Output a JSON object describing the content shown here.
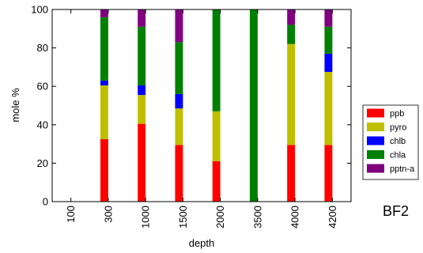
{
  "chart_data": {
    "type": "bar",
    "stacked": true,
    "title": "",
    "xlabel": "depth",
    "ylabel": "mole %",
    "ylim": [
      0,
      100
    ],
    "yticks": [
      0,
      20,
      40,
      60,
      80,
      100
    ],
    "x_tick_labels": [
      "100",
      "300",
      "1000",
      "1500",
      "2000",
      "3500",
      "4000",
      "4200"
    ],
    "categories": [
      "300",
      "1000",
      "1500",
      "2000",
      "3500",
      "4000",
      "4200"
    ],
    "series": [
      {
        "name": "ppb",
        "color": "#ff0000",
        "values": [
          32.5,
          40.5,
          29.5,
          21,
          0,
          29.5,
          29.5
        ]
      },
      {
        "name": "pyro",
        "color": "#bfbf00",
        "values": [
          28,
          15,
          19,
          26,
          0,
          52.5,
          38
        ]
      },
      {
        "name": "chlb",
        "color": "#0000ff",
        "values": [
          2.5,
          5,
          7.5,
          0,
          0,
          0,
          9.5
        ]
      },
      {
        "name": "chla",
        "color": "#008000",
        "values": [
          33,
          30.5,
          27,
          53,
          100,
          10,
          14
        ]
      },
      {
        "name": "pptn-a",
        "color": "#800080",
        "values": [
          4,
          9,
          17,
          0,
          0,
          8,
          9
        ]
      }
    ],
    "grid": false,
    "legend_position": "right",
    "annotation": "BF2"
  }
}
